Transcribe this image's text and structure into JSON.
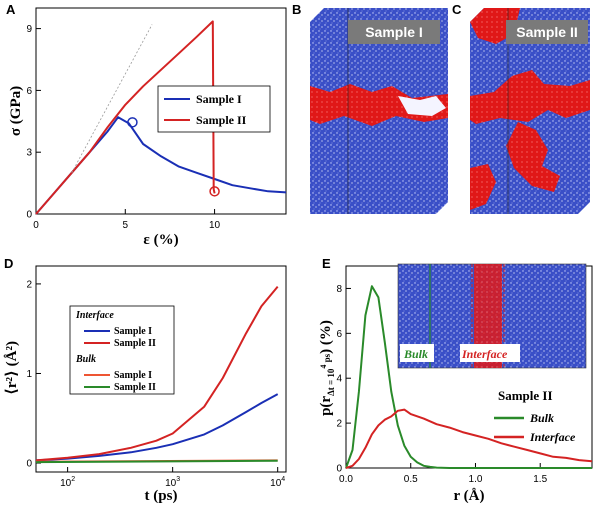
{
  "chart_data": [
    {
      "panel": "A",
      "type": "line",
      "xlabel": "ε (%)",
      "ylabel": "σ (GPa)",
      "xlim": [
        0,
        14
      ],
      "ylim": [
        0,
        10
      ],
      "xticks": [
        0,
        5,
        10
      ],
      "yticks": [
        0,
        3,
        6,
        9
      ],
      "legend_placement": "center-right",
      "series": [
        {
          "name": "Sample I",
          "color": "#1a2fb5",
          "x": [
            0,
            1,
            2,
            3,
            4,
            4.6,
            5.2,
            6,
            7,
            8,
            9,
            10,
            11,
            12,
            13,
            14
          ],
          "y": [
            0,
            1.0,
            2.0,
            3.0,
            4.0,
            4.7,
            4.4,
            3.4,
            2.8,
            2.3,
            2.0,
            1.7,
            1.4,
            1.25,
            1.1,
            1.05
          ]
        },
        {
          "name": "Sample II",
          "color": "#d42323",
          "x": [
            0,
            1,
            2,
            3,
            4,
            5,
            6,
            7,
            8,
            9,
            9.9,
            9.95,
            10
          ],
          "y": [
            0,
            1.0,
            2.0,
            3.0,
            4.2,
            5.3,
            6.2,
            7.0,
            7.8,
            8.6,
            9.35,
            1.2,
            1.0
          ]
        },
        {
          "name": "",
          "color": "#999999",
          "dashed": true,
          "x": [
            2,
            6.5
          ],
          "y": [
            2.0,
            9.2
          ]
        }
      ],
      "markers": [
        {
          "x": 5.4,
          "y": 4.45,
          "color": "#1a2fb5"
        },
        {
          "x": 10,
          "y": 1.1,
          "color": "#d42323"
        }
      ]
    },
    {
      "panel": "D",
      "type": "line",
      "xlabel": "t (ps)",
      "ylabel": "⟨r²⟩ (Å²)",
      "xscale": "log",
      "xlim": [
        50,
        12000
      ],
      "ylim": [
        -0.1,
        2.2
      ],
      "xticks": [
        {
          "v": 100,
          "base": "10",
          "exp": "2"
        },
        {
          "v": 1000,
          "base": "10",
          "exp": "3"
        },
        {
          "v": 10000,
          "base": "10",
          "exp": "4"
        }
      ],
      "yticks": [
        0,
        1,
        2
      ],
      "legend_placement": "center-left",
      "legend_groups": [
        "Interface",
        "Bulk"
      ],
      "series": [
        {
          "name": "Sample I",
          "group": "Interface",
          "color": "#1a2fb5",
          "x": [
            50,
            100,
            200,
            400,
            700,
            1000,
            2000,
            3000,
            5000,
            7000,
            10000
          ],
          "y": [
            0.03,
            0.05,
            0.08,
            0.12,
            0.17,
            0.21,
            0.32,
            0.42,
            0.57,
            0.67,
            0.77
          ]
        },
        {
          "name": "Sample II",
          "group": "Interface",
          "color": "#d42323",
          "x": [
            50,
            100,
            200,
            400,
            700,
            1000,
            2000,
            3000,
            5000,
            7000,
            10000
          ],
          "y": [
            0.03,
            0.06,
            0.1,
            0.17,
            0.25,
            0.33,
            0.63,
            0.95,
            1.45,
            1.75,
            1.97
          ]
        },
        {
          "name": "Sample I",
          "group": "Bulk",
          "color": "#ee5533",
          "x": [
            50,
            10000
          ],
          "y": [
            0.015,
            0.03
          ]
        },
        {
          "name": "Sample II",
          "group": "Bulk",
          "color": "#2a8a2a",
          "x": [
            50,
            10000
          ],
          "y": [
            0.01,
            0.025
          ]
        }
      ]
    },
    {
      "panel": "E",
      "type": "line",
      "xlabel": "r (Å)",
      "ylabel": "p(r_Δt = 10⁴ ps) (%)",
      "ylabel_parts": {
        "pre": "p(r",
        "sub": "Δt = 10",
        "sup": "4",
        "unit": " ps",
        "post": ") (%)"
      },
      "xlim": [
        0,
        1.9
      ],
      "ylim": [
        0,
        9
      ],
      "xticks": [
        0.0,
        0.5,
        1.0,
        1.5
      ],
      "xtick_labels": [
        "0.0",
        "0.5",
        "1.0",
        "1.5"
      ],
      "yticks": [
        0,
        2,
        4,
        6,
        8
      ],
      "legend_title": "Sample II",
      "legend_placement": "bottom-right",
      "series": [
        {
          "name": "Bulk",
          "color": "#2a8a2a",
          "x": [
            0,
            0.05,
            0.1,
            0.15,
            0.2,
            0.25,
            0.3,
            0.35,
            0.4,
            0.45,
            0.5,
            0.55,
            0.6,
            0.65,
            0.7,
            0.8,
            1.9
          ],
          "y": [
            0,
            0.8,
            3.4,
            6.8,
            8.1,
            7.6,
            5.6,
            3.4,
            1.9,
            1.0,
            0.5,
            0.25,
            0.1,
            0.05,
            0.02,
            0,
            0
          ]
        },
        {
          "name": "Interface",
          "color": "#d42323",
          "x": [
            0,
            0.05,
            0.1,
            0.15,
            0.2,
            0.25,
            0.3,
            0.35,
            0.4,
            0.45,
            0.5,
            0.6,
            0.7,
            0.8,
            0.9,
            1.0,
            1.1,
            1.2,
            1.3,
            1.4,
            1.5,
            1.6,
            1.7,
            1.8,
            1.9
          ],
          "y": [
            0,
            0.1,
            0.4,
            0.9,
            1.5,
            1.9,
            2.15,
            2.3,
            2.55,
            2.6,
            2.4,
            2.2,
            1.95,
            1.8,
            1.6,
            1.45,
            1.3,
            1.1,
            0.95,
            0.8,
            0.65,
            0.5,
            0.45,
            0.35,
            0.3
          ]
        }
      ],
      "inset_labels": [
        "Bulk",
        "Interface"
      ]
    }
  ],
  "images": [
    {
      "panel": "B",
      "tag": "Sample I"
    },
    {
      "panel": "C",
      "tag": "Sample II"
    }
  ],
  "colors": {
    "blue": "#1a2fb5",
    "red": "#d42323",
    "green": "#2a8a2a",
    "atom_blue": "#3a4fc7",
    "atom_red": "#e01818"
  }
}
